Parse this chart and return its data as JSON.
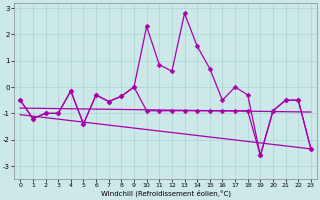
{
  "xlabel": "Windchill (Refroidissement éolien,°C)",
  "xlim": [
    -0.5,
    23.5
  ],
  "ylim": [
    -3.5,
    3.2
  ],
  "yticks": [
    -3,
    -2,
    -1,
    0,
    1,
    2,
    3
  ],
  "xticks": [
    0,
    1,
    2,
    3,
    4,
    5,
    6,
    7,
    8,
    9,
    10,
    11,
    12,
    13,
    14,
    15,
    16,
    17,
    18,
    19,
    20,
    21,
    22,
    23
  ],
  "bg_color": "#cce8e8",
  "grid_color": "#aad4d4",
  "line_color": "#aa00aa",
  "markersize": 2.5,
  "line_width": 0.9,
  "line1_y": [
    -0.5,
    -1.2,
    -1.0,
    -1.0,
    -0.15,
    -1.4,
    -0.3,
    -0.55,
    -0.35,
    0.0,
    2.3,
    0.85,
    0.6,
    2.8,
    1.55,
    0.7,
    -0.5,
    0.0,
    -0.3,
    -2.6,
    -0.9,
    -0.5,
    -0.5,
    -2.35
  ],
  "line2_y": [
    -0.5,
    -1.2,
    -1.0,
    -1.0,
    -0.15,
    -1.4,
    -0.3,
    -0.55,
    -0.35,
    0.0,
    -0.9,
    -0.9,
    -0.9,
    -0.9,
    -0.9,
    -0.9,
    -0.9,
    -0.9,
    -0.9,
    -2.6,
    -0.9,
    -0.5,
    -0.5,
    -2.35
  ],
  "trend1_x": [
    0,
    23
  ],
  "trend1_y": [
    -0.8,
    -0.95
  ],
  "trend2_x": [
    0,
    23
  ],
  "trend2_y": [
    -1.05,
    -2.35
  ]
}
